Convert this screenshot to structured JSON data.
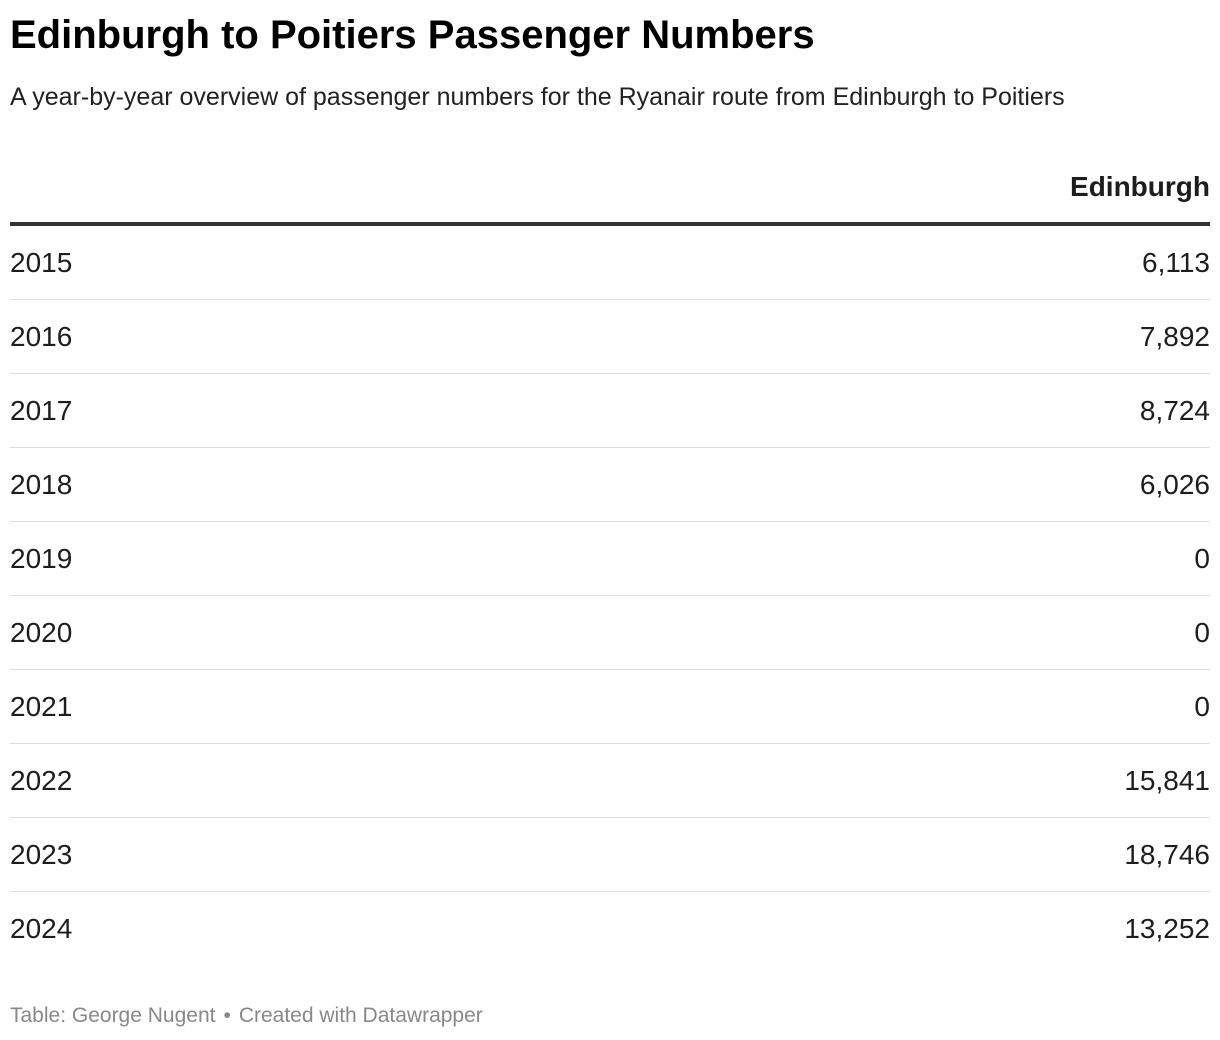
{
  "title": "Edinburgh to Poitiers Passenger Numbers",
  "subtitle": "A year-by-year overview of passenger numbers for the Ryanair route from Edinburgh to Poitiers",
  "chart_data": {
    "type": "table",
    "title": "Edinburgh to Poitiers Passenger Numbers",
    "columns": [
      "",
      "Edinburgh"
    ],
    "rows": [
      {
        "year": "2015",
        "value": "6,113"
      },
      {
        "year": "2016",
        "value": "7,892"
      },
      {
        "year": "2017",
        "value": "8,724"
      },
      {
        "year": "2018",
        "value": "6,026"
      },
      {
        "year": "2019",
        "value": "0"
      },
      {
        "year": "2020",
        "value": "0"
      },
      {
        "year": "2021",
        "value": "0"
      },
      {
        "year": "2022",
        "value": "15,841"
      },
      {
        "year": "2023",
        "value": "18,746"
      },
      {
        "year": "2024",
        "value": "13,252"
      }
    ]
  },
  "footer": {
    "source": "Table: George Nugent",
    "separator": "•",
    "credit": "Created with Datawrapper"
  }
}
